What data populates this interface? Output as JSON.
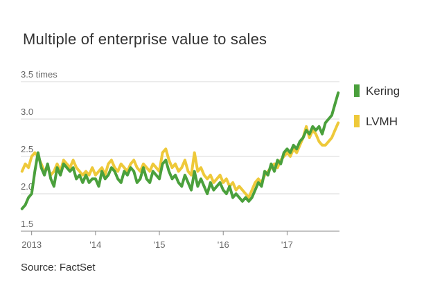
{
  "chart_data": {
    "type": "line",
    "title": "Multiple of enterprise value to sales",
    "source": "Source: FactSet",
    "ylabel": "",
    "xlabel": "",
    "ylim": [
      1.5,
      3.5
    ],
    "xlim": [
      2012.83,
      2017.82
    ],
    "y_ticks": [
      {
        "value": 3.5,
        "label": "3.5 times"
      },
      {
        "value": 3.0,
        "label": "3.0"
      },
      {
        "value": 2.5,
        "label": "2.5"
      },
      {
        "value": 2.0,
        "label": "2.0"
      },
      {
        "value": 1.5,
        "label": "1.5"
      }
    ],
    "x_ticks": [
      {
        "value": 2013,
        "label": "2013"
      },
      {
        "value": 2014,
        "label": "'14"
      },
      {
        "value": 2015,
        "label": "'15"
      },
      {
        "value": 2016,
        "label": "'16"
      },
      {
        "value": 2017,
        "label": "'17"
      }
    ],
    "grid": "horizontal",
    "legend_position": "right",
    "colors": {
      "Kering": "#4aa03c",
      "LVMH": "#eec93a",
      "grid": "#d9d9d9",
      "axis": "#888888"
    },
    "series": [
      {
        "name": "Kering",
        "x": [
          2012.85,
          2012.9,
          2012.95,
          2013.0,
          2013.05,
          2013.1,
          2013.15,
          2013.2,
          2013.25,
          2013.3,
          2013.35,
          2013.4,
          2013.45,
          2013.5,
          2013.55,
          2013.6,
          2013.65,
          2013.7,
          2013.75,
          2013.8,
          2013.85,
          2013.9,
          2013.95,
          2014.0,
          2014.05,
          2014.1,
          2014.15,
          2014.2,
          2014.25,
          2014.3,
          2014.35,
          2014.4,
          2014.45,
          2014.5,
          2014.55,
          2014.6,
          2014.65,
          2014.7,
          2014.75,
          2014.8,
          2014.85,
          2014.9,
          2014.95,
          2015.0,
          2015.05,
          2015.1,
          2015.15,
          2015.2,
          2015.25,
          2015.3,
          2015.35,
          2015.4,
          2015.45,
          2015.5,
          2015.55,
          2015.6,
          2015.65,
          2015.7,
          2015.75,
          2015.8,
          2015.85,
          2015.9,
          2015.95,
          2016.0,
          2016.05,
          2016.1,
          2016.15,
          2016.2,
          2016.25,
          2016.3,
          2016.35,
          2016.4,
          2016.45,
          2016.5,
          2016.55,
          2016.6,
          2016.65,
          2016.7,
          2016.75,
          2016.8,
          2016.85,
          2016.9,
          2016.95,
          2017.0,
          2017.05,
          2017.1,
          2017.15,
          2017.2,
          2017.25,
          2017.3,
          2017.35,
          2017.4,
          2017.45,
          2017.5,
          2017.55,
          2017.6,
          2017.65,
          2017.7,
          2017.75,
          2017.8
        ],
        "values": [
          1.8,
          1.85,
          1.95,
          2.0,
          2.3,
          2.55,
          2.35,
          2.25,
          2.4,
          2.2,
          2.1,
          2.35,
          2.25,
          2.4,
          2.35,
          2.3,
          2.35,
          2.2,
          2.25,
          2.15,
          2.25,
          2.15,
          2.2,
          2.2,
          2.1,
          2.3,
          2.2,
          2.25,
          2.35,
          2.3,
          2.2,
          2.15,
          2.3,
          2.25,
          2.35,
          2.3,
          2.15,
          2.2,
          2.35,
          2.2,
          2.15,
          2.3,
          2.25,
          2.2,
          2.4,
          2.45,
          2.3,
          2.2,
          2.25,
          2.15,
          2.1,
          2.25,
          2.15,
          2.05,
          2.3,
          2.1,
          2.2,
          2.1,
          2.0,
          2.15,
          2.05,
          2.1,
          2.15,
          2.05,
          2.0,
          2.1,
          1.95,
          2.0,
          1.95,
          1.9,
          1.95,
          1.9,
          1.95,
          2.05,
          2.15,
          2.1,
          2.3,
          2.25,
          2.4,
          2.3,
          2.45,
          2.4,
          2.55,
          2.6,
          2.55,
          2.65,
          2.6,
          2.7,
          2.75,
          2.85,
          2.8,
          2.9,
          2.85,
          2.9,
          2.8,
          2.95,
          3.0,
          3.05,
          3.2,
          3.35
        ]
      },
      {
        "name": "LVMH",
        "x": [
          2012.85,
          2012.9,
          2012.95,
          2013.0,
          2013.05,
          2013.1,
          2013.15,
          2013.2,
          2013.25,
          2013.3,
          2013.35,
          2013.4,
          2013.45,
          2013.5,
          2013.55,
          2013.6,
          2013.65,
          2013.7,
          2013.75,
          2013.8,
          2013.85,
          2013.9,
          2013.95,
          2014.0,
          2014.05,
          2014.1,
          2014.15,
          2014.2,
          2014.25,
          2014.3,
          2014.35,
          2014.4,
          2014.45,
          2014.5,
          2014.55,
          2014.6,
          2014.65,
          2014.7,
          2014.75,
          2014.8,
          2014.85,
          2014.9,
          2014.95,
          2015.0,
          2015.05,
          2015.1,
          2015.15,
          2015.2,
          2015.25,
          2015.3,
          2015.35,
          2015.4,
          2015.45,
          2015.5,
          2015.55,
          2015.6,
          2015.65,
          2015.7,
          2015.75,
          2015.8,
          2015.85,
          2015.9,
          2015.95,
          2016.0,
          2016.05,
          2016.1,
          2016.15,
          2016.2,
          2016.25,
          2016.3,
          2016.35,
          2016.4,
          2016.45,
          2016.5,
          2016.55,
          2016.6,
          2016.65,
          2016.7,
          2016.75,
          2016.8,
          2016.85,
          2016.9,
          2016.95,
          2017.0,
          2017.05,
          2017.1,
          2017.15,
          2017.2,
          2017.25,
          2017.3,
          2017.35,
          2017.4,
          2017.45,
          2017.5,
          2017.55,
          2017.6,
          2017.65,
          2017.7,
          2017.75,
          2017.8
        ],
        "values": [
          2.3,
          2.4,
          2.35,
          2.5,
          2.55,
          2.5,
          2.4,
          2.3,
          2.35,
          2.25,
          2.3,
          2.4,
          2.3,
          2.45,
          2.4,
          2.35,
          2.45,
          2.35,
          2.3,
          2.25,
          2.3,
          2.25,
          2.35,
          2.25,
          2.3,
          2.35,
          2.25,
          2.4,
          2.45,
          2.35,
          2.3,
          2.4,
          2.35,
          2.3,
          2.4,
          2.45,
          2.35,
          2.3,
          2.4,
          2.35,
          2.3,
          2.4,
          2.35,
          2.3,
          2.55,
          2.6,
          2.45,
          2.35,
          2.4,
          2.3,
          2.35,
          2.45,
          2.3,
          2.25,
          2.55,
          2.3,
          2.35,
          2.25,
          2.2,
          2.25,
          2.15,
          2.2,
          2.25,
          2.15,
          2.2,
          2.1,
          2.15,
          2.05,
          2.1,
          2.05,
          2.0,
          1.95,
          2.05,
          2.15,
          2.2,
          2.15,
          2.25,
          2.3,
          2.35,
          2.4,
          2.35,
          2.45,
          2.5,
          2.55,
          2.5,
          2.6,
          2.55,
          2.65,
          2.75,
          2.9,
          2.75,
          2.85,
          2.8,
          2.7,
          2.65,
          2.65,
          2.7,
          2.75,
          2.85,
          2.95
        ]
      }
    ]
  }
}
